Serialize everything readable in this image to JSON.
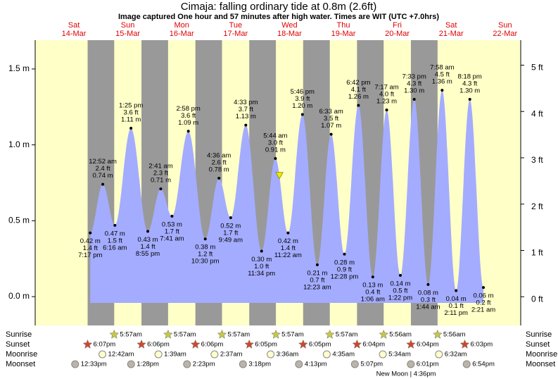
{
  "chart_data": {
    "type": "area",
    "title": "Cimaja: falling  ordinary tide at 0.8m (2.6ft)",
    "subtitle": "Image captured One hour and 57 minutes after high water. Times are WIT (UTC +7.0hrs)",
    "days": [
      {
        "name": "Sat",
        "date": "14-Mar"
      },
      {
        "name": "Sun",
        "date": "15-Mar"
      },
      {
        "name": "Mon",
        "date": "16-Mar"
      },
      {
        "name": "Tue",
        "date": "17-Mar"
      },
      {
        "name": "Wed",
        "date": "18-Mar"
      },
      {
        "name": "Thu",
        "date": "19-Mar"
      },
      {
        "name": "Fri",
        "date": "20-Mar"
      },
      {
        "name": "Sat",
        "date": "21-Mar"
      },
      {
        "name": "Sun",
        "date": "22-Mar"
      }
    ],
    "ylim": [
      -0.19,
      1.69
    ],
    "yticks": [
      {
        "value": 0,
        "label": "0.0 m"
      },
      {
        "value": 0.5,
        "label": "0.5 m"
      },
      {
        "value": 1,
        "label": "1.0 m"
      },
      {
        "value": 1.5,
        "label": "1.5 m"
      }
    ],
    "y2lim": [
      -0.62,
      5.54
    ],
    "y2ticks": [
      {
        "value": 0,
        "label": "0 ft"
      },
      {
        "value": 1,
        "label": "1 ft"
      },
      {
        "value": 2,
        "label": "2 ft"
      },
      {
        "value": 3,
        "label": "3 ft"
      },
      {
        "value": 4,
        "label": "4 ft"
      },
      {
        "value": 5,
        "label": "5 ft"
      }
    ],
    "color": "#a4acff",
    "night_color": "#999999",
    "day_color": "#ffffc8",
    "tides": {
      "times": [
        "7:17 pm",
        "12:52 am",
        "6:16 am",
        "1:25 pm",
        "8:55 pm",
        "2:41 am",
        "7:41 am",
        "2:58 pm",
        "10:30 pm",
        "4:36 am",
        "9:49 am",
        "4:33 pm",
        "11:34 pm",
        "5:44 am",
        "11:22 am",
        "5:46 pm",
        "12:23 am",
        "6:33 am",
        "12:28 pm",
        "6:42 pm",
        "1:06 am",
        "7:17 am",
        "1:22 pm",
        "7:33 pm",
        "1:44 am",
        "7:58 am",
        "2:11 pm",
        "8:18 pm",
        "2:21 am"
      ],
      "ft_labels": [
        "1.4 ft",
        "2.4 ft",
        "1.5 ft",
        "3.6 ft",
        "1.4 ft",
        "2.3 ft",
        "1.7 ft",
        "3.6 ft",
        "1.2 ft",
        "2.6 ft",
        "1.7 ft",
        "3.7 ft",
        "1.0 ft",
        "3.0 ft",
        "1.4 ft",
        "3.9 ft",
        "0.7 ft",
        "3.5 ft",
        "0.9 ft",
        "4.1 ft",
        "0.4 ft",
        "4.0 ft",
        "0.5 ft",
        "4.3 ft",
        "0.3 ft",
        "4.5 ft",
        "0.1 ft",
        "4.3 ft",
        "0.2 ft"
      ],
      "values": [
        0.42,
        0.74,
        0.47,
        1.11,
        0.43,
        0.71,
        0.53,
        1.09,
        0.38,
        0.78,
        0.52,
        1.13,
        0.3,
        0.91,
        0.42,
        1.2,
        0.21,
        1.07,
        0.28,
        1.26,
        0.13,
        1.23,
        0.14,
        1.3,
        0.08,
        1.36,
        0.04,
        1.3,
        0.06
      ],
      "value_labels": [
        "0.42 m",
        "0.74 m",
        "0.47 m",
        "1.11 m",
        "0.43 m",
        "0.71 m",
        "0.53 m",
        "1.09 m",
        "0.38 m",
        "0.78 m",
        "0.52 m",
        "1.13 m",
        "0.30 m",
        "0.91 m",
        "0.42 m",
        "1.20 m",
        "0.21 m",
        "1.07 m",
        "0.28 m",
        "1.26 m",
        "0.13 m",
        "1.23 m",
        "0.14 m",
        "1.30 m",
        "0.08 m",
        "1.36 m",
        "0.04 m",
        "1.30 m",
        "0.06 m"
      ]
    },
    "current_level": 0.8,
    "rows": [
      {
        "label": "Sunrise",
        "times": [
          null,
          "5:57am",
          "5:57am",
          "5:57am",
          "5:57am",
          "5:57am",
          "5:56am",
          "5:56am",
          null
        ]
      },
      {
        "label": "Sunset",
        "times": [
          "6:07pm",
          "6:06pm",
          "6:06pm",
          "6:05pm",
          "6:05pm",
          "6:04pm",
          "6:04pm",
          "6:03pm",
          null
        ]
      },
      {
        "label": "Moonrise",
        "times": [
          null,
          "12:42am",
          "1:39am",
          "2:37am",
          "3:36am",
          "4:35am",
          "5:34am",
          "6:32am",
          null
        ]
      },
      {
        "label": "Moonset",
        "times": [
          "12:33pm",
          "1:28pm",
          "2:23pm",
          "3:18pm",
          "4:13pm",
          "5:07pm",
          "6:01pm",
          "6:54pm",
          null
        ]
      }
    ],
    "moon_phase": "New Moon | 4:36pm"
  }
}
